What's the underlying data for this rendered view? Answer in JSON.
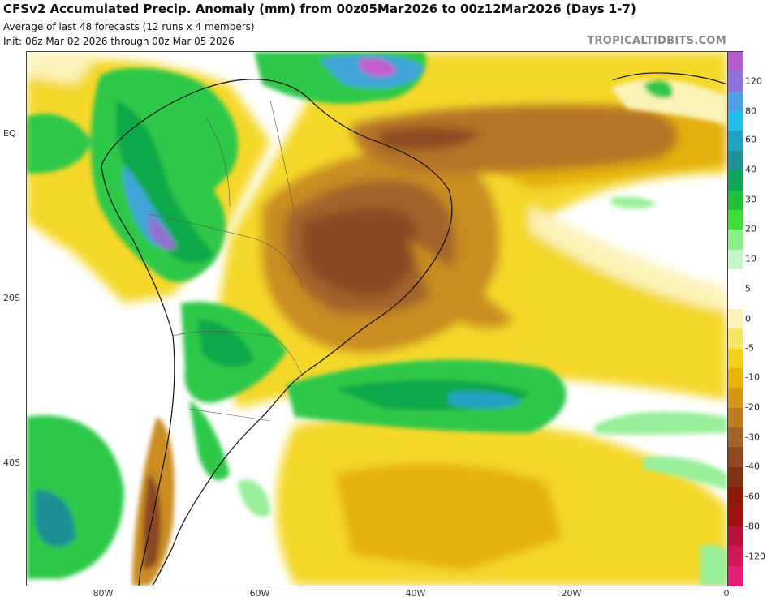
{
  "header": {
    "title": "CFSv2 Accumulated Precip. Anomaly (mm) from 00z05Mar2026 to 00z12Mar2026 (Days 1-7)",
    "subtitle": "Average of last 48 forecasts (12 runs x 4 members)",
    "init": "Init: 06z Mar 02 2026 through 00z Mar 05 2026",
    "credit": "TROPICALTIDBITS.COM"
  },
  "axes": {
    "lat_labels": [
      "EQ",
      "20S",
      "40S"
    ],
    "lon_labels": [
      "80W",
      "60W",
      "40W",
      "20W",
      "0"
    ]
  },
  "colorbar": {
    "labels": [
      "120",
      "80",
      "60",
      "40",
      "30",
      "20",
      "10",
      "5",
      "0",
      "-5",
      "-10",
      "-20",
      "-30",
      "-40",
      "-60",
      "-80",
      "-120"
    ],
    "colors": [
      "#b25fcb",
      "#8e74d6",
      "#52a0e0",
      "#1fbfe6",
      "#21a3bf",
      "#1f8f94",
      "#14a35a",
      "#1fc03c",
      "#3fdb3f",
      "#8cef8c",
      "#c8f5c8",
      "#ffffff",
      "#ffffff",
      "#fbf3b8",
      "#f6e464",
      "#f2d21a",
      "#e8b408",
      "#d39813",
      "#bb7d22",
      "#a2632a",
      "#8d4a22",
      "#7c3210",
      "#8a1a05",
      "#a20f0f",
      "#b8123a",
      "#d11755",
      "#e81d78"
    ]
  },
  "map": {
    "colors": {
      "deep_green": "#0fa84a",
      "green": "#2ec84a",
      "light_green": "#9aef9a",
      "blue": "#40a4d8",
      "purple": "#9070d0",
      "magenta": "#c45ccc",
      "pale_yellow": "#fbf3b8",
      "yellow": "#f4d82a",
      "gold": "#e4b010",
      "orange_brown": "#c98d22",
      "brown": "#a2632a",
      "dark_brown": "#8a4a24"
    }
  }
}
